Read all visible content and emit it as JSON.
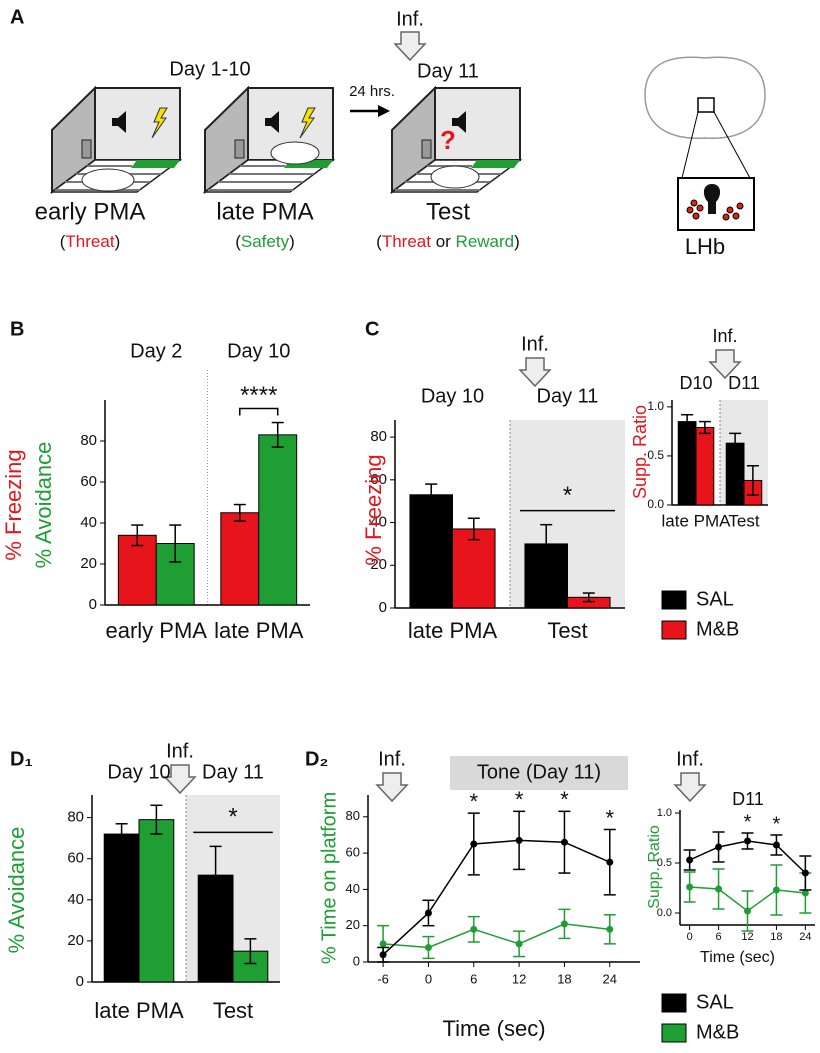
{
  "panel_a": {
    "label": "A",
    "day_1_10": "Day 1-10",
    "inf": "Inf.",
    "day_11": "Day 11",
    "delay": "24 hrs.",
    "early": "early PMA",
    "late": "late PMA",
    "test": "Test",
    "early_note": [
      "(",
      "Threat",
      ")"
    ],
    "late_note": [
      "(",
      "Safety",
      ")"
    ],
    "test_note": [
      "(",
      "Threat",
      " or ",
      "Reward",
      ")"
    ],
    "question": "?",
    "region": "LHb"
  },
  "chart_data": [
    {
      "type": "bar",
      "panel": "B",
      "headers": [
        "Day 2",
        "Day 10"
      ],
      "categories": [
        "early PMA",
        "late PMA"
      ],
      "series": [
        {
          "name": "% Freezing",
          "color": "#e8141b",
          "values": [
            34,
            45
          ],
          "errors": [
            5,
            4
          ]
        },
        {
          "name": "% Avoidance",
          "color": "#1e9e33",
          "values": [
            30,
            83
          ],
          "errors": [
            9,
            6
          ]
        }
      ],
      "ylim": [
        0,
        100
      ],
      "yticks": [
        0,
        20,
        40,
        60,
        80
      ],
      "sig": "****",
      "divider": true
    },
    {
      "type": "bar",
      "panel": "C",
      "inf": "Inf.",
      "headers": [
        "Day 10",
        "Day 11"
      ],
      "categories": [
        "late PMA",
        "Test"
      ],
      "ylabel": "% Freezing",
      "ylabel_color": "#e8141b",
      "series": [
        {
          "name": "SAL",
          "color": "#000000",
          "values": [
            53,
            30
          ],
          "errors": [
            5,
            9
          ]
        },
        {
          "name": "M&B",
          "color": "#e8141b",
          "values": [
            37,
            5
          ],
          "errors": [
            5,
            2
          ]
        }
      ],
      "ylim": [
        0,
        88
      ],
      "yticks": [
        0,
        20,
        40,
        60,
        80
      ],
      "sig": "*",
      "shaded": true
    },
    {
      "type": "bar",
      "inf": "Inf.",
      "headers": [
        "D10",
        "D11"
      ],
      "categories": [
        "late PMA",
        "Test"
      ],
      "ylabel": "Supp. Ratio",
      "ylabel_color": "#e8141b",
      "series": [
        {
          "color": "#000000",
          "values": [
            0.85,
            0.63
          ],
          "errors": [
            0.07,
            0.1
          ]
        },
        {
          "color": "#e8141b",
          "values": [
            0.79,
            0.25
          ],
          "errors": [
            0.06,
            0.15
          ]
        }
      ],
      "ylim": [
        0,
        1.07
      ],
      "yticks": [
        {
          "value": 0,
          "label": "0.0"
        },
        {
          "value": 0.5,
          "label": "0.5"
        },
        {
          "value": 1,
          "label": "1.0"
        }
      ],
      "shaded": true
    },
    {
      "type": "bar",
      "panel": "D₁",
      "inf": "Inf.",
      "headers": [
        "Day 10",
        "Day 11"
      ],
      "categories": [
        "late PMA",
        "Test"
      ],
      "ylabel": "% Avoidance",
      "ylabel_color": "#1e9e33",
      "series": [
        {
          "color": "#000000",
          "values": [
            72,
            52
          ],
          "errors": [
            5,
            14
          ]
        },
        {
          "color": "#1e9e33",
          "values": [
            79,
            15
          ],
          "errors": [
            7,
            6
          ]
        }
      ],
      "ylim": [
        0,
        91
      ],
      "yticks": [
        0,
        20,
        40,
        60,
        80
      ],
      "sig": "*",
      "shaded": true
    },
    {
      "type": "line",
      "panel": "D₂",
      "inf": "Inf.",
      "tone": "Tone (Day 11)",
      "x": [
        -6,
        0,
        6,
        12,
        18,
        24
      ],
      "series": [
        {
          "name": "SAL",
          "color": "#000000",
          "values": [
            4,
            27,
            65,
            67,
            66,
            55
          ],
          "errors": [
            4,
            7,
            17,
            16,
            17,
            18
          ]
        },
        {
          "name": "M&B",
          "color": "#1e9e33",
          "values": [
            10,
            8,
            18,
            10,
            21,
            18
          ],
          "errors": [
            10,
            6,
            7,
            7,
            8,
            8
          ]
        }
      ],
      "xlim": [
        -8,
        28
      ],
      "ylim": [
        0,
        92
      ],
      "xticks": [
        -6,
        0,
        6,
        12,
        18,
        24
      ],
      "yticks": [
        0,
        20,
        40,
        60,
        80
      ],
      "xlabel": "Time (sec)",
      "ylabel": "% Time on platform",
      "ylabel_color": "#1e9e33",
      "stars": [
        {
          "x": 6,
          "text": "*"
        },
        {
          "x": 12,
          "text": "*"
        },
        {
          "x": 18,
          "text": "*"
        },
        {
          "x": 24,
          "text": "*"
        }
      ]
    },
    {
      "type": "line",
      "inf": "Inf.",
      "title": "D11",
      "x": [
        0,
        6,
        12,
        18,
        24
      ],
      "series": [
        {
          "color": "#000000",
          "values": [
            0.53,
            0.66,
            0.72,
            0.68,
            0.4
          ],
          "errors": [
            0.1,
            0.15,
            0.08,
            0.1,
            0.17
          ]
        },
        {
          "color": "#1e9e33",
          "values": [
            0.26,
            0.24,
            0.02,
            0.23,
            0.2
          ],
          "errors": [
            0.15,
            0.2,
            0.2,
            0.25,
            0.2
          ]
        }
      ],
      "xlim": [
        -2,
        26
      ],
      "ylim": [
        -0.12,
        1.03
      ],
      "xticks": [
        0,
        6,
        12,
        18,
        24
      ],
      "yticks": [
        {
          "value": 0,
          "label": "0.0"
        },
        {
          "value": 0.5,
          "label": "0.5"
        },
        {
          "value": 1,
          "label": "1.0"
        }
      ],
      "xlabel": "Time (sec)",
      "ylabel": "Supp. Ratio",
      "ylabel_color": "#1e9e33",
      "stars": [
        {
          "x": 12,
          "text": "*"
        },
        {
          "x": 18,
          "text": "*"
        }
      ]
    }
  ]
}
